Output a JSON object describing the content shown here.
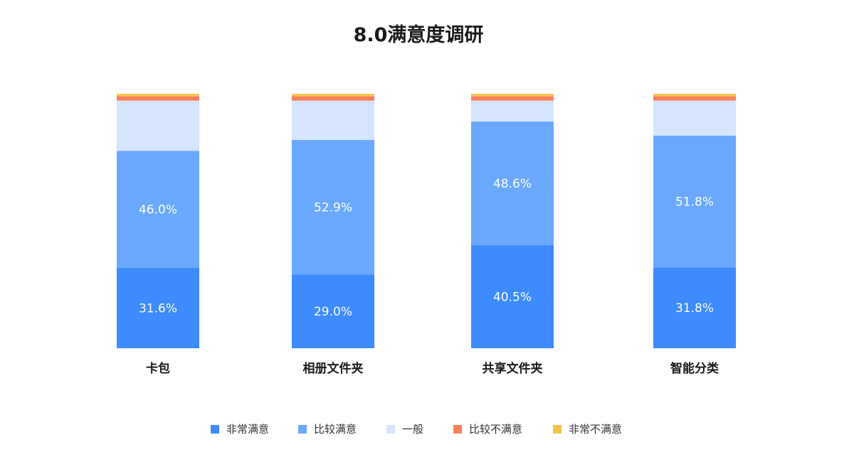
{
  "chart_data": {
    "type": "bar",
    "stacked": true,
    "percent_stacked": true,
    "title": "8.0满意度调研",
    "categories": [
      "卡包",
      "相册文件夹",
      "共享文件夹",
      "智能分类"
    ],
    "ylim": [
      0,
      100
    ],
    "grid": false,
    "legend_position": "bottom",
    "series": [
      {
        "name": "非常满意",
        "color": "#3d8bfd",
        "values": [
          31.6,
          29.0,
          40.5,
          31.8
        ],
        "labels": [
          "31.6%",
          "29.0%",
          "40.5%",
          "31.8%"
        ]
      },
      {
        "name": "比较满意",
        "color": "#69a8fd",
        "values": [
          46.0,
          52.9,
          48.6,
          51.8
        ],
        "labels": [
          "46.0%",
          "52.9%",
          "48.6%",
          "51.8%"
        ]
      },
      {
        "name": "一般",
        "color": "#d5e5fd",
        "values": [
          19.7,
          15.4,
          8.2,
          13.7
        ],
        "labels": [
          "",
          "",
          "",
          ""
        ]
      },
      {
        "name": "比较不满意",
        "color": "#f7805c",
        "values": [
          1.7,
          1.7,
          1.7,
          1.7
        ],
        "labels": [
          "",
          "",
          "",
          ""
        ]
      },
      {
        "name": "非常不满意",
        "color": "#f5c34c",
        "values": [
          1.0,
          1.0,
          1.0,
          1.0
        ],
        "labels": [
          "",
          "",
          "",
          ""
        ]
      }
    ]
  }
}
